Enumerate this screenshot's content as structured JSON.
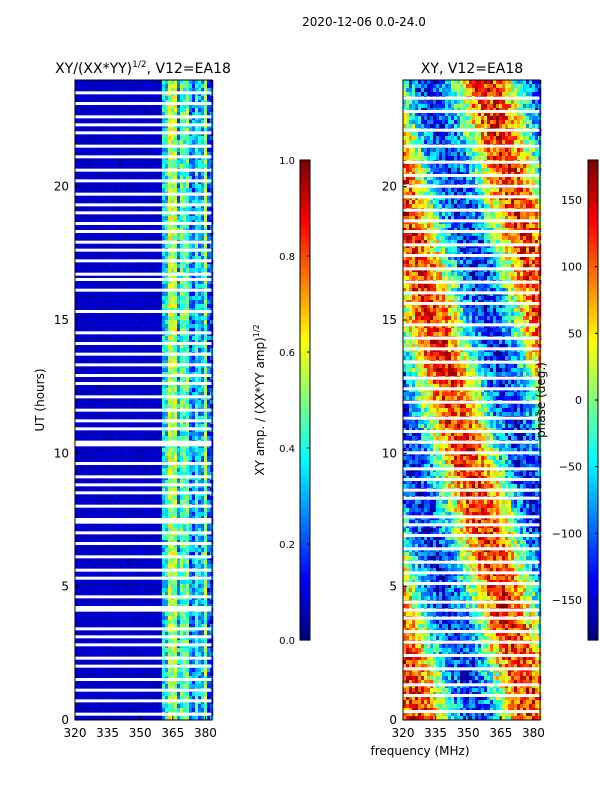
{
  "chart_data": [
    {
      "type": "heatmap",
      "suptitle": "2020-12-06 0.0-24.0",
      "title_main": "XY/(XX*YY)",
      "title_exp": "1/2",
      "title_tail": ", V12=EA18",
      "xlabel": "",
      "ylabel": "UT (hours)",
      "xlim": [
        320,
        383
      ],
      "ylim": [
        0,
        24
      ],
      "xticks": [
        "320",
        "335",
        "350",
        "365",
        "380"
      ],
      "yticks": [
        "0",
        "5",
        "10",
        "15",
        "20"
      ],
      "colorbar": {
        "label_main": "XY amp. / (XX*YY amp)",
        "label_exp": "1/2",
        "range": [
          0.0,
          1.0
        ],
        "ticks": [
          "0.0",
          "0.2",
          "0.4",
          "0.6",
          "0.8",
          "1.0"
        ],
        "colormap": "jet"
      },
      "band_structure": [
        {
          "freq_start": 320,
          "freq_end": 360,
          "value": 0.05
        },
        {
          "freq_start": 360,
          "freq_end": 362,
          "value": 0.35
        },
        {
          "freq_start": 362,
          "freq_end": 366,
          "value": 0.55
        },
        {
          "freq_start": 366,
          "freq_end": 368,
          "value": 0.3
        },
        {
          "freq_start": 368,
          "freq_end": 372,
          "value": 0.45
        },
        {
          "freq_start": 372,
          "freq_end": 374,
          "value": 0.25
        },
        {
          "freq_start": 374,
          "freq_end": 376,
          "value": 0.4
        },
        {
          "freq_start": 376,
          "freq_end": 378,
          "value": 0.3
        },
        {
          "freq_start": 378,
          "freq_end": 380,
          "value": 0.5
        },
        {
          "freq_start": 380,
          "freq_end": 383,
          "value": 0.2
        }
      ],
      "flagged_hours": [
        0.2,
        0.7,
        1.1,
        1.5,
        2.0,
        2.3,
        2.8,
        3.1,
        3.4,
        4.1,
        4.2,
        4.6,
        5.3,
        5.6,
        6.1,
        6.6,
        7.0,
        7.4,
        7.5,
        8.0,
        8.5,
        8.8,
        9.1,
        9.6,
        10.3,
        10.4,
        10.9,
        11.2,
        11.6,
        12.1,
        12.6,
        12.9,
        13.3,
        13.7,
        14.1,
        14.5,
        15.3,
        16.1,
        16.5,
        16.7,
        17.2,
        17.6,
        17.9,
        18.3,
        18.6,
        19.0,
        19.3,
        19.7,
        20.2,
        20.6,
        21.1,
        21.5,
        22.0,
        22.3,
        22.6,
        23.1,
        23.5
      ]
    },
    {
      "type": "heatmap",
      "title": "XY, V12=EA18",
      "xlabel": "frequency (MHz)",
      "ylabel": "",
      "xlim": [
        320,
        383
      ],
      "ylim": [
        0,
        24
      ],
      "xticks": [
        "320",
        "335",
        "350",
        "365",
        "380"
      ],
      "yticks": [
        "0",
        "5",
        "10",
        "15",
        "20"
      ],
      "colorbar": {
        "label": "phase (deg.)",
        "range": [
          -180,
          180
        ],
        "ticks": [
          "−150",
          "−100",
          "−50",
          "0",
          "50",
          "100",
          "150"
        ],
        "colormap": "jet"
      },
      "flagged_hours": [
        0.3,
        0.9,
        1.3,
        1.9,
        2.4,
        2.9,
        3.3,
        3.8,
        4.1,
        4.4,
        5.1,
        5.5,
        5.9,
        6.4,
        6.9,
        7.3,
        7.6,
        8.3,
        8.6,
        9.0,
        9.4,
        10.0,
        10.4,
        10.8,
        11.3,
        11.9,
        12.4,
        12.8,
        13.4,
        13.9,
        14.3,
        14.8,
        15.6,
        16.0,
        16.4,
        16.9,
        17.4,
        17.8,
        18.3,
        18.7,
        19.1,
        19.6,
        20.0,
        20.4,
        20.9,
        21.5,
        22.1,
        22.8,
        23.3
      ]
    }
  ]
}
